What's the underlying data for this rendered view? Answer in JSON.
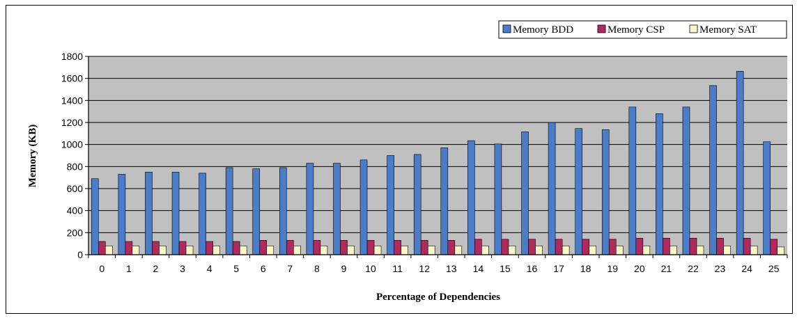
{
  "chart_data": {
    "type": "bar",
    "title": "",
    "xlabel": "Percentage of Dependencies",
    "ylabel": "Memory (KB)",
    "ylim": [
      0,
      1800
    ],
    "yticks": [
      0,
      200,
      400,
      600,
      800,
      1000,
      1200,
      1400,
      1600,
      1800
    ],
    "grid": "horizontal",
    "legend_position": "top-right",
    "categories": [
      "0",
      "1",
      "2",
      "3",
      "4",
      "5",
      "6",
      "7",
      "8",
      "9",
      "10",
      "11",
      "12",
      "13",
      "14",
      "15",
      "16",
      "17",
      "18",
      "19",
      "20",
      "21",
      "22",
      "23",
      "24",
      "25"
    ],
    "series": [
      {
        "name": "Memory BDD",
        "color": "#4a7cc7",
        "values": [
          690,
          730,
          750,
          750,
          740,
          790,
          780,
          790,
          830,
          830,
          860,
          900,
          910,
          970,
          1035,
          1005,
          1115,
          1200,
          1145,
          1135,
          1340,
          1280,
          1340,
          1535,
          1665,
          1025
        ]
      },
      {
        "name": "Memory CSP",
        "color": "#b02a5e",
        "values": [
          120,
          120,
          120,
          120,
          120,
          120,
          130,
          130,
          130,
          130,
          130,
          130,
          130,
          130,
          140,
          140,
          140,
          140,
          140,
          140,
          150,
          150,
          150,
          150,
          150,
          140
        ]
      },
      {
        "name": "Memory SAT",
        "color": "#fbf6c8",
        "values": [
          80,
          80,
          80,
          80,
          80,
          80,
          80,
          80,
          80,
          80,
          80,
          80,
          80,
          80,
          80,
          80,
          80,
          80,
          80,
          80,
          80,
          80,
          80,
          80,
          80,
          70
        ]
      }
    ]
  }
}
